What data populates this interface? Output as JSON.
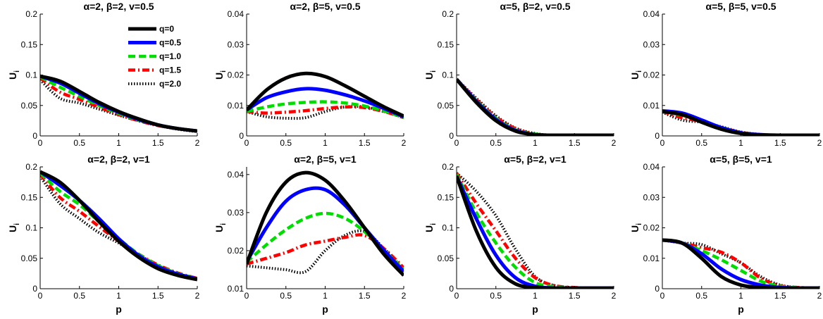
{
  "chart_data": {
    "type": "line",
    "ylabel_symbol": "U",
    "ylabel_subscript": "i",
    "legend": {
      "location": "top-right of first panel",
      "entries": [
        {
          "label": "q=0",
          "color": "#000000",
          "style": "solid"
        },
        {
          "label": "q=0.5",
          "color": "#0000ff",
          "style": "solid"
        },
        {
          "label": "q=1.0",
          "color": "#00dd00",
          "style": "dashed"
        },
        {
          "label": "q=1.5",
          "color": "#ff0000",
          "style": "dashdot"
        },
        {
          "label": "q=2.0",
          "color": "#000000",
          "style": "dotted"
        }
      ]
    },
    "panels": [
      {
        "title": "α=2, β=2, v=0.5",
        "xlabel": "",
        "ylabel": "U",
        "xlim": [
          0,
          2
        ],
        "ylim": [
          0,
          0.2
        ],
        "xticks": [
          "0",
          "0.5",
          "1",
          "1.5",
          "2"
        ],
        "yticks": [
          "0",
          "0.05",
          "0.1",
          "0.15",
          "0.2"
        ],
        "x": [
          0,
          0.25,
          0.5,
          0.75,
          1,
          1.25,
          1.5,
          1.75,
          2
        ],
        "series": [
          {
            "name": "q=0",
            "values": [
              0.098,
              0.09,
              0.073,
              0.055,
              0.04,
              0.028,
              0.018,
              0.012,
              0.008
            ]
          },
          {
            "name": "q=0.5",
            "values": [
              0.098,
              0.087,
              0.07,
              0.053,
              0.039,
              0.027,
              0.018,
              0.012,
              0.008
            ]
          },
          {
            "name": "q=1.0",
            "values": [
              0.097,
              0.08,
              0.065,
              0.05,
              0.037,
              0.026,
              0.018,
              0.012,
              0.008
            ]
          },
          {
            "name": "q=1.5",
            "values": [
              0.095,
              0.072,
              0.06,
              0.047,
              0.035,
              0.025,
              0.017,
              0.012,
              0.008
            ]
          },
          {
            "name": "q=2.0",
            "values": [
              0.092,
              0.062,
              0.054,
              0.044,
              0.034,
              0.025,
              0.017,
              0.011,
              0.007
            ]
          }
        ]
      },
      {
        "title": "α=2, β=5, v=0.5",
        "xlabel": "",
        "ylabel": "U",
        "xlim": [
          0,
          2
        ],
        "ylim": [
          0,
          0.04
        ],
        "xticks": [
          "0",
          "0.5",
          "1",
          "1.5",
          "2"
        ],
        "yticks": [
          "0",
          "0.01",
          "0.02",
          "0.03",
          "0.04"
        ],
        "x": [
          0,
          0.25,
          0.5,
          0.75,
          1,
          1.25,
          1.5,
          1.75,
          2
        ],
        "series": [
          {
            "name": "q=0",
            "values": [
              0.0085,
              0.015,
              0.019,
              0.0205,
              0.0195,
              0.0165,
              0.013,
              0.0095,
              0.0065
            ]
          },
          {
            "name": "q=0.5",
            "values": [
              0.0085,
              0.0125,
              0.0145,
              0.0155,
              0.015,
              0.0135,
              0.0115,
              0.009,
              0.0063
            ]
          },
          {
            "name": "q=1.0",
            "values": [
              0.008,
              0.0095,
              0.0105,
              0.011,
              0.0112,
              0.0108,
              0.0098,
              0.0082,
              0.006
            ]
          },
          {
            "name": "q=1.5",
            "values": [
              0.008,
              0.0075,
              0.0078,
              0.0083,
              0.009,
              0.0095,
              0.0093,
              0.008,
              0.006
            ]
          },
          {
            "name": "q=2.0",
            "values": [
              0.008,
              0.0063,
              0.0058,
              0.006,
              0.008,
              0.0095,
              0.0095,
              0.008,
              0.006
            ]
          }
        ]
      },
      {
        "title": "α=5, β=2, v=0.5",
        "xlabel": "",
        "ylabel": "U",
        "xlim": [
          0,
          2
        ],
        "ylim": [
          0,
          0.2
        ],
        "xticks": [
          "0",
          "0.5",
          "1",
          "1.5",
          "2"
        ],
        "yticks": [
          "0",
          "0.05",
          "0.1",
          "0.15",
          "0.2"
        ],
        "x": [
          0,
          0.25,
          0.5,
          0.75,
          1,
          1.25,
          1.5,
          1.75,
          2
        ],
        "series": [
          {
            "name": "q=0",
            "values": [
              0.093,
              0.055,
              0.025,
              0.008,
              0.002,
              0.001,
              0.001,
              0.001,
              0.001
            ]
          },
          {
            "name": "q=0.5",
            "values": [
              0.093,
              0.057,
              0.027,
              0.009,
              0.002,
              0.001,
              0.001,
              0.001,
              0.001
            ]
          },
          {
            "name": "q=1.0",
            "values": [
              0.093,
              0.058,
              0.029,
              0.01,
              0.003,
              0.001,
              0.001,
              0.001,
              0.001
            ]
          },
          {
            "name": "q=1.5",
            "values": [
              0.093,
              0.06,
              0.031,
              0.012,
              0.003,
              0.001,
              0.001,
              0.001,
              0.001
            ]
          },
          {
            "name": "q=2.0",
            "values": [
              0.093,
              0.062,
              0.033,
              0.013,
              0.004,
              0.001,
              0.001,
              0.001,
              0.001
            ]
          }
        ]
      },
      {
        "title": "α=5, β=5, v=0.5",
        "xlabel": "",
        "ylabel": "U",
        "xlim": [
          0,
          2
        ],
        "ylim": [
          0,
          0.04
        ],
        "xticks": [
          "0",
          "0.5",
          "1",
          "1.5",
          "2"
        ],
        "yticks": [
          "0",
          "0.01",
          "0.02",
          "0.03",
          "0.04"
        ],
        "x": [
          0,
          0.25,
          0.5,
          0.75,
          1,
          1.25,
          1.5,
          1.75,
          2
        ],
        "series": [
          {
            "name": "q=0",
            "values": [
              0.008,
              0.007,
              0.0045,
              0.0022,
              0.0008,
              0.0003,
              0.0002,
              0.0002,
              0.0002
            ]
          },
          {
            "name": "q=0.5",
            "values": [
              0.0082,
              0.0075,
              0.0052,
              0.0027,
              0.001,
              0.0004,
              0.0002,
              0.0002,
              0.0002
            ]
          },
          {
            "name": "q=1.0",
            "values": [
              0.008,
              0.0068,
              0.005,
              0.0028,
              0.0011,
              0.0004,
              0.0002,
              0.0002,
              0.0002
            ]
          },
          {
            "name": "q=1.5",
            "values": [
              0.008,
              0.006,
              0.0047,
              0.0028,
              0.0012,
              0.0004,
              0.0002,
              0.0002,
              0.0002
            ]
          },
          {
            "name": "q=2.0",
            "values": [
              0.0078,
              0.0052,
              0.0045,
              0.003,
              0.0013,
              0.0005,
              0.0002,
              0.0002,
              0.0002
            ]
          }
        ]
      },
      {
        "title": "α=2, β=2, v=1",
        "xlabel": "p",
        "ylabel": "U",
        "xlim": [
          0,
          2
        ],
        "ylim": [
          0,
          0.2
        ],
        "xticks": [
          "0",
          "0.5",
          "1",
          "1.5",
          "2"
        ],
        "yticks": [
          "0",
          "0.05",
          "0.1",
          "0.15",
          "0.2"
        ],
        "x": [
          0,
          0.25,
          0.5,
          0.75,
          1,
          1.25,
          1.5,
          1.75,
          2
        ],
        "series": [
          {
            "name": "q=0",
            "values": [
              0.192,
              0.175,
              0.145,
              0.11,
              0.078,
              0.052,
              0.033,
              0.022,
              0.015
            ]
          },
          {
            "name": "q=0.5",
            "values": [
              0.192,
              0.17,
              0.145,
              0.115,
              0.082,
              0.055,
              0.036,
              0.024,
              0.016
            ]
          },
          {
            "name": "q=1.0",
            "values": [
              0.19,
              0.16,
              0.138,
              0.11,
              0.082,
              0.057,
              0.038,
              0.025,
              0.017
            ]
          },
          {
            "name": "q=1.5",
            "values": [
              0.188,
              0.15,
              0.127,
              0.102,
              0.078,
              0.057,
              0.039,
              0.026,
              0.017
            ]
          },
          {
            "name": "q=2.0",
            "values": [
              0.185,
              0.14,
              0.115,
              0.092,
              0.075,
              0.056,
              0.038,
              0.025,
              0.016
            ]
          }
        ]
      },
      {
        "title": "α=2, β=5, v=1",
        "xlabel": "p",
        "ylabel": "U",
        "xlim": [
          0,
          2
        ],
        "ylim": [
          0.01,
          0.042
        ],
        "xticks": [
          "0",
          "0.5",
          "1",
          "1.5",
          "2"
        ],
        "yticks": [
          "0.01",
          "0.02",
          "0.03",
          "0.04"
        ],
        "x": [
          0,
          0.25,
          0.5,
          0.75,
          1,
          1.25,
          1.5,
          1.75,
          2
        ],
        "series": [
          {
            "name": "q=0",
            "values": [
              0.0165,
              0.03,
              0.038,
              0.0405,
              0.0385,
              0.033,
              0.026,
              0.019,
              0.0135
            ]
          },
          {
            "name": "q=0.5",
            "values": [
              0.017,
              0.026,
              0.033,
              0.036,
              0.036,
              0.032,
              0.026,
              0.02,
              0.0145
            ]
          },
          {
            "name": "q=1.0",
            "values": [
              0.017,
              0.0215,
              0.0255,
              0.0285,
              0.0298,
              0.0285,
              0.025,
              0.02,
              0.015
            ]
          },
          {
            "name": "q=1.5",
            "values": [
              0.0165,
              0.018,
              0.0195,
              0.0215,
              0.0225,
              0.0235,
              0.024,
              0.0205,
              0.0155
            ]
          },
          {
            "name": "q=2.0",
            "values": [
              0.016,
              0.0155,
              0.015,
              0.0145,
              0.02,
              0.024,
              0.025,
              0.0205,
              0.015
            ]
          }
        ]
      },
      {
        "title": "α=5, β=2, v=1",
        "xlabel": "p",
        "ylabel": "U",
        "xlim": [
          0,
          2
        ],
        "ylim": [
          0,
          0.2
        ],
        "xticks": [
          "0",
          "0.5",
          "1",
          "1.5",
          "2"
        ],
        "yticks": [
          "0",
          "0.05",
          "0.1",
          "0.15",
          "0.2"
        ],
        "x": [
          0,
          0.25,
          0.5,
          0.75,
          1,
          1.25,
          1.5,
          1.75,
          2
        ],
        "series": [
          {
            "name": "q=0",
            "values": [
              0.185,
              0.095,
              0.035,
              0.008,
              0.002,
              0.001,
              0.001,
              0.001,
              0.001
            ]
          },
          {
            "name": "q=0.5",
            "values": [
              0.185,
              0.115,
              0.055,
              0.018,
              0.004,
              0.001,
              0.001,
              0.001,
              0.001
            ]
          },
          {
            "name": "q=1.0",
            "values": [
              0.188,
              0.125,
              0.075,
              0.035,
              0.01,
              0.003,
              0.001,
              0.001,
              0.001
            ]
          },
          {
            "name": "q=1.5",
            "values": [
              0.19,
              0.14,
              0.095,
              0.05,
              0.018,
              0.005,
              0.002,
              0.001,
              0.001
            ]
          },
          {
            "name": "q=2.0",
            "values": [
              0.19,
              0.16,
              0.12,
              0.065,
              0.02,
              0.005,
              0.002,
              0.001,
              0.001
            ]
          }
        ]
      },
      {
        "title": "α=5, β=5, v=1",
        "xlabel": "p",
        "ylabel": "U",
        "xlim": [
          0,
          2
        ],
        "ylim": [
          0,
          0.04
        ],
        "xticks": [
          "0",
          "0.5",
          "1",
          "1.5",
          "2"
        ],
        "yticks": [
          "0",
          "0.01",
          "0.02",
          "0.03",
          "0.04"
        ],
        "x": [
          0,
          0.25,
          0.5,
          0.75,
          1,
          1.25,
          1.5,
          1.75,
          2
        ],
        "series": [
          {
            "name": "q=0",
            "values": [
              0.016,
              0.015,
              0.01,
              0.004,
              0.0012,
              0.0004,
              0.0002,
              0.0002,
              0.0002
            ]
          },
          {
            "name": "q=0.5",
            "values": [
              0.016,
              0.015,
              0.0115,
              0.0065,
              0.003,
              0.0012,
              0.0004,
              0.0002,
              0.0002
            ]
          },
          {
            "name": "q=1.0",
            "values": [
              0.016,
              0.015,
              0.0125,
              0.0095,
              0.006,
              0.0025,
              0.0008,
              0.0003,
              0.0002
            ]
          },
          {
            "name": "q=1.5",
            "values": [
              0.016,
              0.015,
              0.0135,
              0.012,
              0.0085,
              0.0035,
              0.001,
              0.0004,
              0.0002
            ]
          },
          {
            "name": "q=2.0",
            "values": [
              0.016,
              0.015,
              0.0145,
              0.0115,
              0.0085,
              0.004,
              0.0012,
              0.0004,
              0.0002
            ]
          }
        ]
      }
    ]
  }
}
